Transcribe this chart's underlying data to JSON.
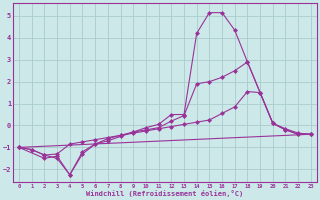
{
  "background_color": "#cce8e8",
  "grid_color": "#aacccc",
  "line_color": "#993399",
  "xlabel": "Windchill (Refroidissement éolien,°C)",
  "xlim": [
    -0.5,
    23.5
  ],
  "ylim": [
    -2.6,
    5.6
  ],
  "yticks": [
    -2,
    -1,
    0,
    1,
    2,
    3,
    4,
    5
  ],
  "xticks": [
    0,
    1,
    2,
    3,
    4,
    5,
    6,
    7,
    8,
    9,
    10,
    11,
    12,
    13,
    14,
    15,
    16,
    17,
    18,
    19,
    20,
    21,
    22,
    23
  ],
  "line1_x": [
    0,
    1,
    2,
    3,
    4,
    5,
    6,
    7,
    8,
    9,
    10,
    11,
    12,
    13,
    14,
    15,
    16,
    17,
    18,
    19,
    20,
    21,
    22,
    23
  ],
  "line1_y": [
    -1.0,
    -1.1,
    -1.35,
    -1.5,
    -2.25,
    -1.3,
    -0.85,
    -0.6,
    -0.45,
    -0.3,
    -0.1,
    0.05,
    0.5,
    0.5,
    4.2,
    5.15,
    5.15,
    4.35,
    2.9,
    1.5,
    0.1,
    -0.2,
    -0.4,
    -0.4
  ],
  "line2_x": [
    0,
    2,
    3,
    4,
    5,
    6,
    7,
    8,
    9,
    10,
    11,
    12,
    13,
    14,
    15,
    16,
    17,
    18,
    19,
    20,
    21,
    22,
    23
  ],
  "line2_y": [
    -1.0,
    -1.5,
    -1.4,
    -2.25,
    -1.2,
    -0.85,
    -0.7,
    -0.5,
    -0.3,
    -0.2,
    -0.1,
    0.2,
    0.45,
    1.9,
    2.0,
    2.2,
    2.5,
    2.9,
    1.5,
    0.1,
    -0.2,
    -0.4,
    -0.4
  ],
  "line3_x": [
    0,
    1,
    2,
    3,
    4,
    5,
    6,
    7,
    8,
    9,
    10,
    11,
    12,
    13,
    14,
    15,
    16,
    17,
    18,
    19,
    20,
    21,
    22,
    23
  ],
  "line3_y": [
    -1.0,
    -1.1,
    -1.35,
    -1.3,
    -0.85,
    -0.75,
    -0.65,
    -0.55,
    -0.45,
    -0.35,
    -0.25,
    -0.15,
    -0.05,
    0.05,
    0.15,
    0.25,
    0.55,
    0.85,
    1.55,
    1.5,
    0.1,
    -0.15,
    -0.35,
    -0.4
  ],
  "line4_x": [
    0,
    23
  ],
  "line4_y": [
    -1.0,
    -0.4
  ]
}
